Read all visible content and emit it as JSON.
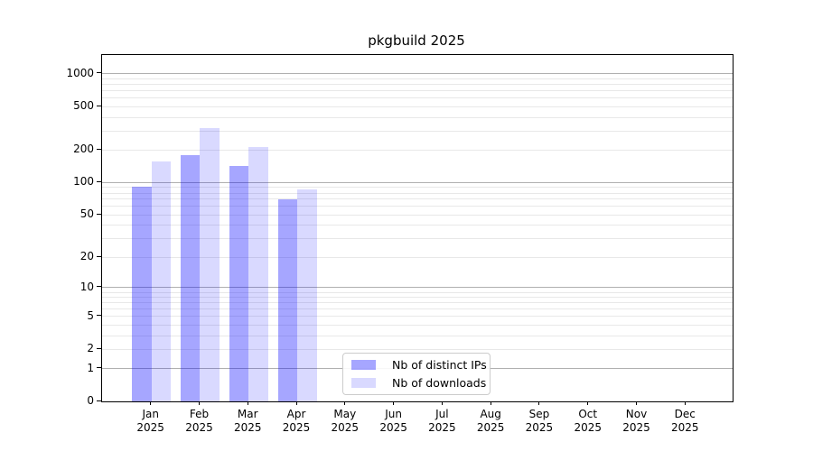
{
  "page": {
    "background": "#ffffff"
  },
  "chart_data": {
    "type": "bar",
    "title": "pkgbuild 2025",
    "categories": [
      "Jan 2025",
      "Feb 2025",
      "Mar 2025",
      "Apr 2025",
      "May 2025",
      "Jun 2025",
      "Jul 2025",
      "Aug 2025",
      "Sep 2025",
      "Oct 2025",
      "Nov 2025",
      "Dec 2025"
    ],
    "series": [
      {
        "name": "Nb of distinct IPs",
        "color": "rgba(0,0,255,0.35)",
        "values": [
          91,
          180,
          143,
          70,
          0,
          0,
          0,
          0,
          0,
          0,
          0,
          0
        ]
      },
      {
        "name": "Nb of downloads",
        "color": "rgba(0,0,255,0.15)",
        "values": [
          158,
          320,
          215,
          87,
          0,
          0,
          0,
          0,
          0,
          0,
          0,
          0
        ]
      }
    ],
    "xlabel": "",
    "ylabel": "",
    "y_axis": {
      "scale": "log10(value+1)",
      "tick_labels": [
        "0",
        "1",
        "2",
        "5",
        "10",
        "20",
        "50",
        "100",
        "200",
        "500",
        "1000"
      ],
      "tick_values": [
        0,
        1,
        2,
        5,
        10,
        20,
        50,
        100,
        200,
        500,
        1000
      ],
      "range": [
        0,
        1490
      ]
    },
    "grid": {
      "enabled": true,
      "major_values": [
        1,
        10,
        100,
        1000
      ],
      "major_color": "#b0b0b0",
      "minor_color": "#e8e8e8"
    },
    "legend": {
      "position": "lower center",
      "items": [
        "Nb of distinct IPs",
        "Nb of downloads"
      ]
    }
  }
}
